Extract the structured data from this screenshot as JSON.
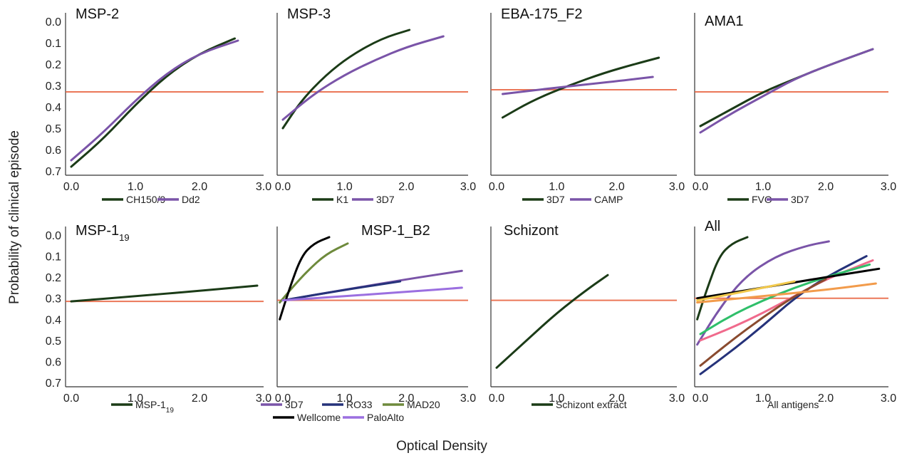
{
  "figure": {
    "ylabel": "Probability of clinical episode",
    "xlabel": "Optical Density"
  },
  "colors": {
    "threshold": "#e8603c",
    "threshold_faint": "#f2a98a",
    "dark_green": "#1b3b17",
    "purple": "#7a54a8",
    "navy": "#25327a",
    "olive_green": "#6e8a3c",
    "black": "#000000",
    "light_purple": "#9b6fe0",
    "green": "#2fbf6a",
    "pink": "#f06a8c",
    "orange": "#f29b4b",
    "yellow": "#f2c94c",
    "brown": "#8a4b2f"
  },
  "chart_data": [
    {
      "type": "line",
      "title": "MSP-2",
      "xticks": [
        "0.0",
        "1.0",
        "2.0",
        "3.0"
      ],
      "yticks": [
        "0.0",
        "0.1",
        "0.2",
        "0.3",
        "0.4",
        "0.5",
        "0.6",
        "0.7"
      ],
      "xlim": [
        0,
        3
      ],
      "ylim": [
        0,
        0.7
      ],
      "y_inverted": true,
      "threshold": 0.33,
      "series": [
        {
          "name": "CH150/9",
          "color": "dark_green",
          "points": [
            [
              0.0,
              0.68
            ],
            [
              0.5,
              0.55
            ],
            [
              1.0,
              0.39
            ],
            [
              1.5,
              0.25
            ],
            [
              2.0,
              0.15
            ],
            [
              2.55,
              0.08
            ]
          ]
        },
        {
          "name": "Dd2",
          "color": "purple",
          "points": [
            [
              0.0,
              0.65
            ],
            [
              0.5,
              0.52
            ],
            [
              1.0,
              0.37
            ],
            [
              1.5,
              0.24
            ],
            [
              2.0,
              0.15
            ],
            [
              2.6,
              0.09
            ]
          ]
        }
      ],
      "legend": [
        "CH150/9",
        "Dd2"
      ]
    },
    {
      "type": "line",
      "title": "MSP-3",
      "xticks": [
        "0.0",
        "1.0",
        "2.0",
        "3.0"
      ],
      "yticks": [],
      "xlim": [
        0,
        3
      ],
      "ylim": [
        0,
        0.7
      ],
      "y_inverted": true,
      "threshold": 0.33,
      "series": [
        {
          "name": "K1",
          "color": "dark_green",
          "points": [
            [
              0.0,
              0.5
            ],
            [
              0.3,
              0.37
            ],
            [
              0.7,
              0.25
            ],
            [
              1.1,
              0.16
            ],
            [
              1.6,
              0.08
            ],
            [
              2.05,
              0.04
            ]
          ]
        },
        {
          "name": "3D7",
          "color": "purple",
          "points": [
            [
              0.0,
              0.46
            ],
            [
              0.5,
              0.34
            ],
            [
              1.0,
              0.25
            ],
            [
              1.5,
              0.18
            ],
            [
              2.0,
              0.12
            ],
            [
              2.6,
              0.07
            ]
          ]
        }
      ],
      "legend": [
        "K1",
        "3D7"
      ]
    },
    {
      "type": "line",
      "title": "EBA-175_F2",
      "xticks": [
        "0.0",
        "1.0",
        "2.0",
        "3.0"
      ],
      "yticks": [],
      "xlim": [
        0,
        3
      ],
      "ylim": [
        0,
        0.7
      ],
      "y_inverted": true,
      "threshold": 0.32,
      "series": [
        {
          "name": "3D7",
          "color": "dark_green",
          "points": [
            [
              0.1,
              0.45
            ],
            [
              0.6,
              0.37
            ],
            [
              1.2,
              0.3
            ],
            [
              1.8,
              0.24
            ],
            [
              2.3,
              0.2
            ],
            [
              2.7,
              0.17
            ]
          ]
        },
        {
          "name": "CAMP",
          "color": "purple",
          "points": [
            [
              0.1,
              0.34
            ],
            [
              1.0,
              0.31
            ],
            [
              2.0,
              0.28
            ],
            [
              2.6,
              0.26
            ]
          ]
        }
      ],
      "legend": [
        "3D7",
        "CAMP"
      ]
    },
    {
      "type": "line",
      "title": "AMA1",
      "xticks": [
        "0.0",
        "1.0",
        "2.0",
        "3.0"
      ],
      "yticks": [],
      "xlim": [
        0,
        3
      ],
      "ylim": [
        0,
        0.7
      ],
      "y_inverted": true,
      "threshold": 0.33,
      "series": [
        {
          "name": "FVO",
          "color": "dark_green",
          "points": [
            [
              0.0,
              0.49
            ],
            [
              0.5,
              0.41
            ],
            [
              1.0,
              0.33
            ],
            [
              1.5,
              0.27
            ],
            [
              2.0,
              0.21
            ],
            [
              2.75,
              0.13
            ]
          ]
        },
        {
          "name": "3D7",
          "color": "purple",
          "points": [
            [
              0.0,
              0.52
            ],
            [
              0.5,
              0.43
            ],
            [
              1.0,
              0.35
            ],
            [
              1.5,
              0.27
            ],
            [
              2.0,
              0.21
            ],
            [
              2.75,
              0.13
            ]
          ]
        }
      ],
      "legend": [
        "FVO",
        "3D7"
      ]
    },
    {
      "type": "line",
      "title": "MSP-1",
      "title_subscript": "19",
      "xticks": [
        "0.0",
        "1.0",
        "2.0",
        "3.0"
      ],
      "yticks": [
        "0.0",
        "0.1",
        "0.2",
        "0.3",
        "0.4",
        "0.5",
        "0.6",
        "0.7"
      ],
      "xlim": [
        0,
        3
      ],
      "ylim": [
        0,
        0.7
      ],
      "y_inverted": true,
      "threshold": 0.315,
      "series": [
        {
          "name": "MSP-1",
          "name_subscript": "19",
          "color": "dark_green",
          "points": [
            [
              0.0,
              0.315
            ],
            [
              1.0,
              0.29
            ],
            [
              2.0,
              0.265
            ],
            [
              2.9,
              0.24
            ]
          ]
        }
      ],
      "legend": [
        "MSP-1"
      ]
    },
    {
      "type": "line",
      "title": "MSP-1_B2",
      "xticks": [
        "0.0",
        "1.0",
        "2.0",
        "3.0"
      ],
      "yticks": [],
      "xlim": [
        0,
        3
      ],
      "ylim": [
        0,
        0.7
      ],
      "y_inverted": true,
      "threshold": 0.31,
      "series": [
        {
          "name": "3D7",
          "color": "purple",
          "points": [
            [
              0.0,
              0.31
            ],
            [
              1.0,
              0.26
            ],
            [
              2.0,
              0.21
            ],
            [
              2.9,
              0.17
            ]
          ]
        },
        {
          "name": "RO33",
          "color": "navy",
          "points": [
            [
              0.0,
              0.31
            ],
            [
              1.0,
              0.26
            ],
            [
              1.9,
              0.22
            ]
          ]
        },
        {
          "name": "MAD20",
          "color": "olive_green",
          "points": [
            [
              -0.05,
              0.32
            ],
            [
              0.15,
              0.25
            ],
            [
              0.4,
              0.17
            ],
            [
              0.7,
              0.09
            ],
            [
              1.05,
              0.04
            ]
          ]
        },
        {
          "name": "Wellcome",
          "color": "black",
          "points": [
            [
              -0.05,
              0.4
            ],
            [
              0.1,
              0.26
            ],
            [
              0.3,
              0.1
            ],
            [
              0.5,
              0.04
            ],
            [
              0.75,
              0.01
            ]
          ]
        },
        {
          "name": "PaloAlto",
          "color": "light_purple",
          "points": [
            [
              0.0,
              0.31
            ],
            [
              1.0,
              0.29
            ],
            [
              2.0,
              0.27
            ],
            [
              2.9,
              0.25
            ]
          ]
        }
      ],
      "legend": [
        "3D7",
        "RO33",
        "MAD20",
        "Wellcome",
        "PaloAlto"
      ]
    },
    {
      "type": "line",
      "title": "Schizont",
      "xticks": [
        "0.0",
        "1.0",
        "2.0",
        "3.0"
      ],
      "yticks": [],
      "xlim": [
        0,
        3
      ],
      "ylim": [
        0,
        0.7
      ],
      "y_inverted": true,
      "threshold": 0.31,
      "series": [
        {
          "name": "Schizont extract",
          "color": "dark_green",
          "points": [
            [
              0.0,
              0.63
            ],
            [
              0.5,
              0.5
            ],
            [
              1.0,
              0.37
            ],
            [
              1.5,
              0.26
            ],
            [
              1.85,
              0.19
            ]
          ]
        }
      ],
      "legend": [
        "Schizont extract"
      ]
    },
    {
      "type": "line",
      "title": "All",
      "xticks": [
        "0.0",
        "1.0",
        "2.0",
        "3.0"
      ],
      "yticks": [],
      "xlim": [
        0,
        3
      ],
      "ylim": [
        0,
        0.7
      ],
      "y_inverted": true,
      "threshold": 0.3,
      "series": [
        {
          "name": "",
          "color": "dark_green",
          "points": [
            [
              -0.05,
              0.4
            ],
            [
              0.1,
              0.26
            ],
            [
              0.3,
              0.1
            ],
            [
              0.5,
              0.04
            ],
            [
              0.75,
              0.01
            ]
          ]
        },
        {
          "name": "",
          "color": "purple",
          "points": [
            [
              -0.05,
              0.52
            ],
            [
              0.3,
              0.35
            ],
            [
              0.7,
              0.2
            ],
            [
              1.2,
              0.1
            ],
            [
              1.7,
              0.05
            ],
            [
              2.05,
              0.03
            ]
          ]
        },
        {
          "name": "",
          "color": "navy",
          "points": [
            [
              0.0,
              0.66
            ],
            [
              0.5,
              0.55
            ],
            [
              1.0,
              0.43
            ],
            [
              1.5,
              0.3
            ],
            [
              2.0,
              0.2
            ],
            [
              2.65,
              0.1
            ]
          ]
        },
        {
          "name": "",
          "color": "pink",
          "points": [
            [
              0.0,
              0.5
            ],
            [
              0.5,
              0.44
            ],
            [
              1.0,
              0.37
            ],
            [
              1.5,
              0.29
            ],
            [
              2.0,
              0.21
            ],
            [
              2.75,
              0.12
            ]
          ]
        },
        {
          "name": "",
          "color": "green",
          "points": [
            [
              0.0,
              0.47
            ],
            [
              0.5,
              0.38
            ],
            [
              1.0,
              0.31
            ],
            [
              1.5,
              0.25
            ],
            [
              2.0,
              0.2
            ],
            [
              2.7,
              0.14
            ]
          ]
        },
        {
          "name": "",
          "color": "brown",
          "points": [
            [
              0.0,
              0.62
            ],
            [
              0.5,
              0.5
            ],
            [
              1.0,
              0.39
            ],
            [
              1.5,
              0.29
            ],
            [
              2.0,
              0.21
            ]
          ]
        },
        {
          "name": "",
          "color": "black",
          "points": [
            [
              -0.05,
              0.3
            ],
            [
              1.0,
              0.25
            ],
            [
              2.0,
              0.2
            ],
            [
              2.85,
              0.16
            ]
          ]
        },
        {
          "name": "",
          "color": "yellow",
          "points": [
            [
              -0.05,
              0.31
            ],
            [
              0.5,
              0.28
            ],
            [
              1.0,
              0.25
            ],
            [
              1.5,
              0.22
            ]
          ]
        },
        {
          "name": "",
          "color": "orange",
          "points": [
            [
              -0.05,
              0.32
            ],
            [
              1.0,
              0.29
            ],
            [
              2.0,
              0.26
            ],
            [
              2.8,
              0.23
            ]
          ]
        }
      ],
      "legend": [
        "All antigens"
      ]
    }
  ]
}
